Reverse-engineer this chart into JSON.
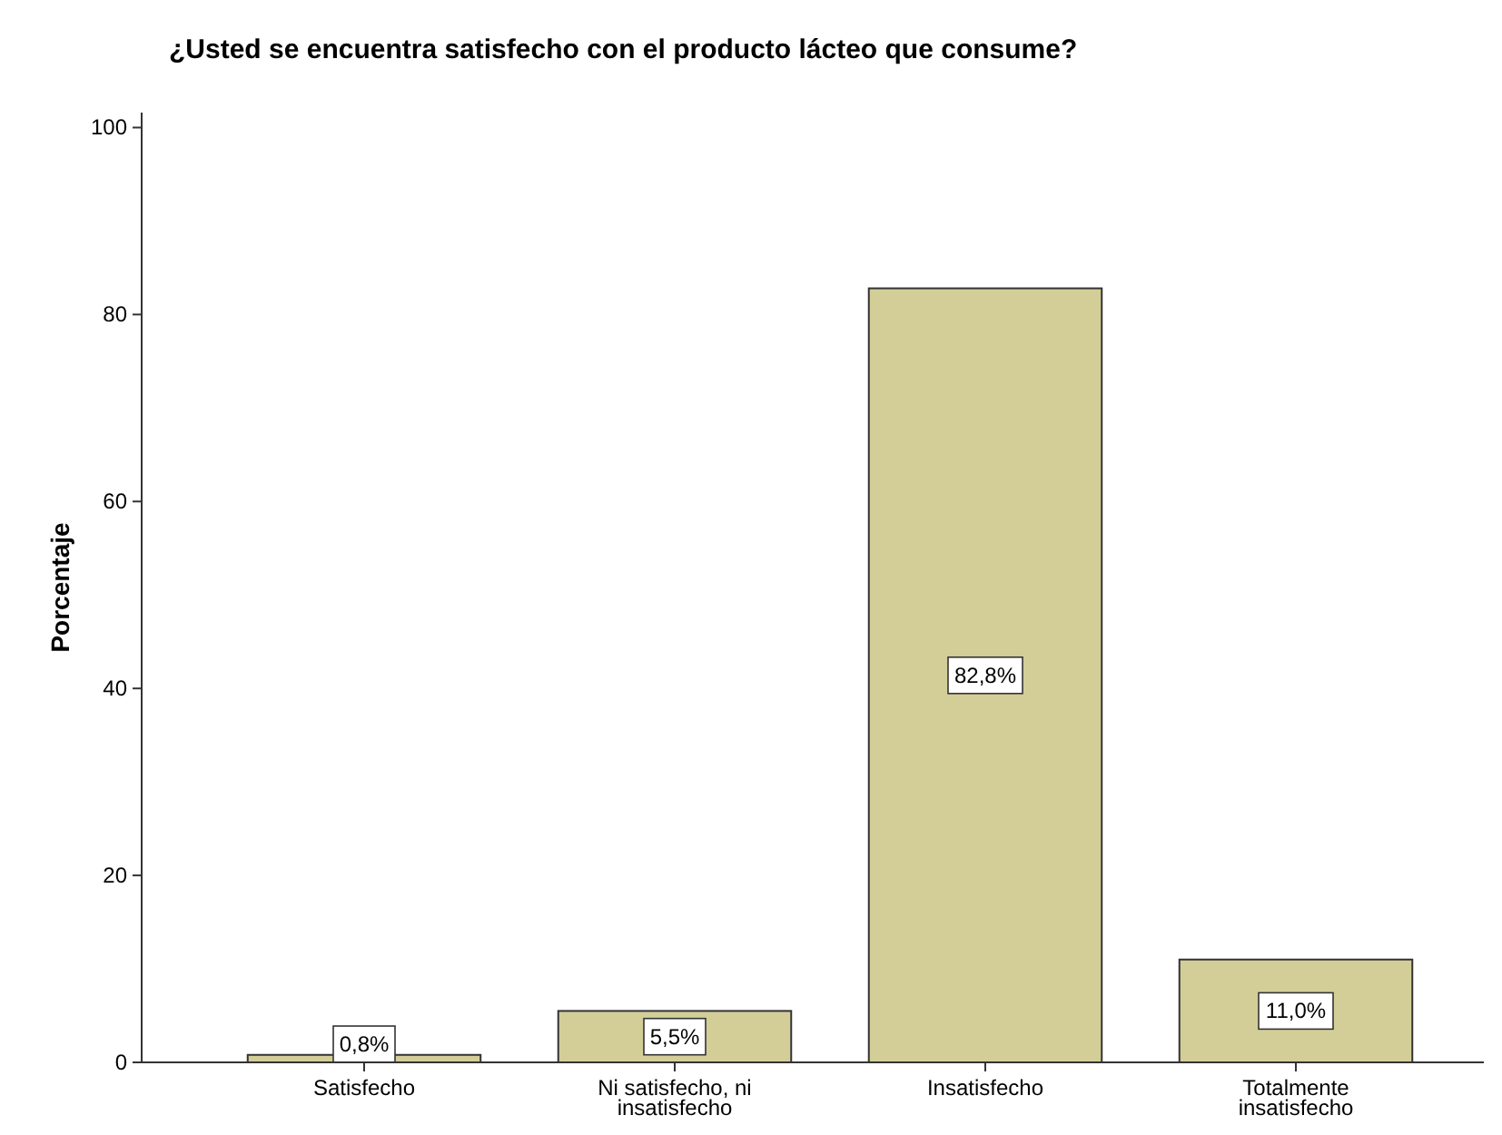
{
  "chart_data": {
    "type": "bar",
    "title": "¿Usted se encuentra satisfecho con el producto lácteo que consume?",
    "ylabel": "Porcentaje",
    "categories": [
      "Satisfecho",
      "Ni satisfecho, ni insatisfecho",
      "Insatisfecho",
      "Totalmente insatisfecho"
    ],
    "values": [
      0.8,
      5.5,
      82.8,
      11.0
    ],
    "value_labels": [
      "0,8%",
      "5,5%",
      "82,8%",
      "11,0%"
    ],
    "color": "#d3ce98",
    "ylim": [
      0,
      101.6
    ],
    "yticks": [
      0,
      20,
      40,
      60,
      80,
      100
    ],
    "grid": false
  }
}
